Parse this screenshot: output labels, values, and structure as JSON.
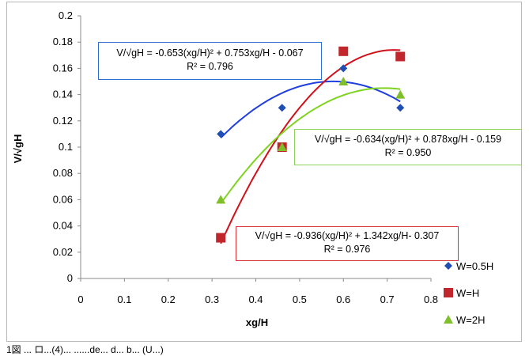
{
  "chart_data": {
    "type": "scatter",
    "title": "",
    "xlabel": "xg/H",
    "ylabel": "V/√gH",
    "xlim": [
      0,
      0.8
    ],
    "ylim": [
      0,
      0.2
    ],
    "x_ticks": [
      "0",
      "0.1",
      "0.2",
      "0.3",
      "0.4",
      "0.5",
      "0.6",
      "0.7",
      "0.8"
    ],
    "y_ticks": [
      "0",
      "0.02",
      "0.04",
      "0.06",
      "0.08",
      "0.1",
      "0.12",
      "0.14",
      "0.16",
      "0.18",
      "0.2"
    ],
    "grid": false,
    "legend_position": "right",
    "series": [
      {
        "name": "W=0.5H",
        "marker": "diamond",
        "color": "#1f4fb3",
        "line_color": "#1f3ee0",
        "x": [
          0.32,
          0.46,
          0.6,
          0.73
        ],
        "y": [
          0.11,
          0.13,
          0.16,
          0.13
        ],
        "fit": {
          "a": -0.653,
          "b": 0.753,
          "c": -0.067,
          "r2": "0.796"
        },
        "equation_label": "V/√gH  = -0.653(xg/H)² + 0.753xg/H - 0.067",
        "r2_label": "R² = 0.796"
      },
      {
        "name": "W=H",
        "marker": "square",
        "color": "#c0262c",
        "line_color": "#d0111a",
        "x": [
          0.32,
          0.46,
          0.6,
          0.73
        ],
        "y": [
          0.031,
          0.1,
          0.173,
          0.169
        ],
        "fit": {
          "a": -0.936,
          "b": 1.342,
          "c": -0.307,
          "r2": "0.976"
        },
        "equation_label": "V/√gH   = -0.936(xg/H)² + 1.342xg/H- 0.307",
        "r2_label": "R² = 0.976"
      },
      {
        "name": "W=2H",
        "marker": "triangle",
        "color": "#7fbf2a",
        "line_color": "#7ed321",
        "x": [
          0.32,
          0.46,
          0.6,
          0.73
        ],
        "y": [
          0.06,
          0.1,
          0.15,
          0.14
        ],
        "fit": {
          "a": -0.634,
          "b": 0.878,
          "c": -0.159,
          "r2": "0.950"
        },
        "equation_label": "V/√gH   = -0.634(xg/H)² + 0.878xg/H - 0.159",
        "r2_label": "R² = 0.950"
      }
    ]
  },
  "caption": "1図 ... ロ...(4)... ......de... d... b... (U...)"
}
